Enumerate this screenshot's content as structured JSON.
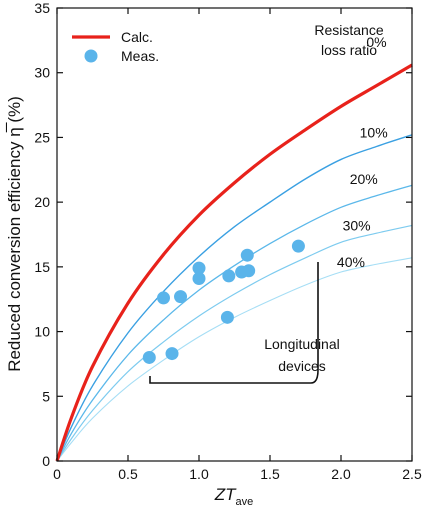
{
  "chart_data": {
    "type": "line",
    "xlabel_main": "ZT",
    "xlabel_sub": "ave",
    "ylabel": "Reduced conversion efficiency η̅ (%)",
    "xlim": [
      0,
      2.5
    ],
    "ylim": [
      0,
      35
    ],
    "x_ticks": [
      0,
      0.5,
      1.0,
      1.5,
      2.0,
      2.5
    ],
    "x_tick_labels": [
      "0",
      "0.5",
      "1.0",
      "1.5",
      "2.0",
      "2.5"
    ],
    "y_ticks": [
      0,
      5,
      10,
      15,
      20,
      25,
      30,
      35
    ],
    "y_tick_labels": [
      "0",
      "5",
      "10",
      "15",
      "20",
      "25",
      "30",
      "35"
    ],
    "legend": {
      "position": "top-left",
      "entries": [
        {
          "label": "Calc.",
          "kind": "line",
          "color": "#e8221b"
        },
        {
          "label": "Meas.",
          "kind": "marker",
          "color": "#5ab4ea"
        }
      ]
    },
    "curve_header": [
      "Resistance",
      "loss ratio"
    ],
    "series": [
      {
        "name": "0%",
        "color": "#e8221b",
        "width": 3.2,
        "x": [
          0,
          0.1,
          0.25,
          0.5,
          0.75,
          1.0,
          1.25,
          1.5,
          1.75,
          2.0,
          2.25,
          2.5
        ],
        "y": [
          0,
          3.3,
          7.3,
          12.2,
          15.95,
          19.0,
          21.5,
          23.7,
          25.6,
          27.4,
          29.0,
          30.6
        ]
      },
      {
        "name": "10%",
        "color": "#3aa0e2",
        "width": 1.4,
        "x": [
          0,
          0.1,
          0.25,
          0.5,
          0.75,
          1.0,
          1.25,
          1.5,
          1.75,
          2.0,
          2.25,
          2.5
        ],
        "y": [
          0,
          2.6,
          5.8,
          9.9,
          13.1,
          15.8,
          18.1,
          20.0,
          21.8,
          23.3,
          24.3,
          25.2
        ]
      },
      {
        "name": "20%",
        "color": "#5bb8ea",
        "width": 1.3,
        "x": [
          0,
          0.1,
          0.25,
          0.5,
          0.75,
          1.0,
          1.25,
          1.5,
          1.75,
          2.0,
          2.25,
          2.5
        ],
        "y": [
          0,
          2.1,
          4.7,
          8.2,
          10.9,
          13.2,
          15.1,
          16.8,
          18.3,
          19.6,
          20.5,
          21.3
        ]
      },
      {
        "name": "30%",
        "color": "#7dcbef",
        "width": 1.2,
        "x": [
          0,
          0.1,
          0.25,
          0.5,
          0.75,
          1.0,
          1.25,
          1.5,
          1.75,
          2.0,
          2.25,
          2.5
        ],
        "y": [
          0,
          1.7,
          3.9,
          6.9,
          9.2,
          11.2,
          12.9,
          14.4,
          15.7,
          16.9,
          17.6,
          18.2
        ]
      },
      {
        "name": "40%",
        "color": "#a6def5",
        "width": 1.1,
        "x": [
          0,
          0.1,
          0.25,
          0.5,
          0.75,
          1.0,
          1.25,
          1.5,
          1.75,
          2.0,
          2.25,
          2.5
        ],
        "y": [
          0,
          1.4,
          3.3,
          5.8,
          7.8,
          9.6,
          11.1,
          12.4,
          13.6,
          14.6,
          15.2,
          15.7
        ]
      }
    ],
    "measured": {
      "name": "Meas.",
      "color": "#5ab4ea",
      "x": [
        0.65,
        0.75,
        0.81,
        0.87,
        1.0,
        1.0,
        1.2,
        1.21,
        1.3,
        1.34,
        1.35,
        1.7
      ],
      "y": [
        8.0,
        12.6,
        8.3,
        12.7,
        14.1,
        14.9,
        11.1,
        14.3,
        14.6,
        15.9,
        14.7,
        16.6
      ]
    },
    "annotation": {
      "lines": [
        "Longitudinal",
        "devices"
      ]
    }
  }
}
